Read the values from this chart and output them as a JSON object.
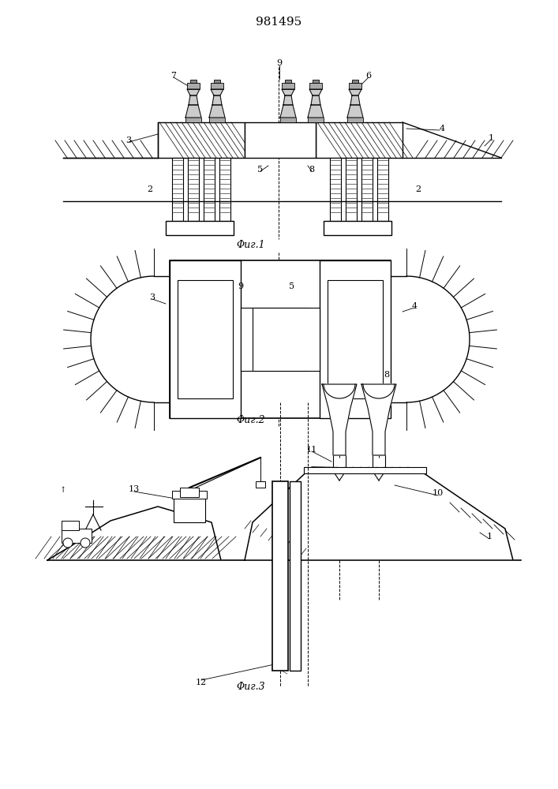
{
  "title": "981495",
  "fig1_caption": "Φиг.1",
  "fig2_caption": "Φиг.2",
  "fig3_caption": "Φиг.3",
  "bg_color": "#ffffff",
  "line_color": "#000000",
  "page_width": 7.07,
  "page_height": 10.0
}
